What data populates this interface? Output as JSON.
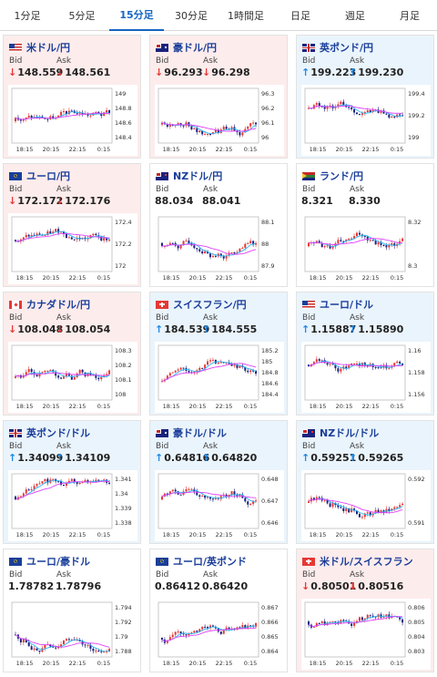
{
  "tabs": [
    "1分足",
    "5分足",
    "15分足",
    "30分足",
    "1時間足",
    "日足",
    "週足",
    "月足"
  ],
  "active_tab": 2,
  "labels": {
    "bid": "Bid",
    "ask": "Ask"
  },
  "x_ticks": [
    "18:15",
    "20:15",
    "22:15",
    "0:15"
  ],
  "colors": {
    "down": "#e53935",
    "up": "#1e88e5",
    "ma": "#e040fb",
    "bull": "#e53935",
    "bear": "#1a237e"
  },
  "cards": [
    {
      "pair": "米ドル/円",
      "flag": "flag-us",
      "bid": "148.559",
      "ask": "148.561",
      "dir": "down",
      "y_ticks": [
        "149",
        "148.8",
        "148.6",
        "148.4"
      ]
    },
    {
      "pair": "豪ドル/円",
      "flag": "flag-au",
      "bid": "96.293",
      "ask": "96.298",
      "dir": "down",
      "y_ticks": [
        "96.3",
        "96.2",
        "96.1",
        "96"
      ]
    },
    {
      "pair": "英ポンド/円",
      "flag": "flag-gb",
      "bid": "199.223",
      "ask": "199.230",
      "dir": "up",
      "y_ticks": [
        "199.4",
        "199.2",
        "199"
      ]
    },
    {
      "pair": "ユーロ/円",
      "flag": "flag-eu",
      "bid": "172.172",
      "ask": "172.176",
      "dir": "down",
      "y_ticks": [
        "172.4",
        "172.2",
        "172"
      ]
    },
    {
      "pair": "NZドル/円",
      "flag": "flag-nz",
      "bid": "88.034",
      "ask": "88.041",
      "dir": "none",
      "y_ticks": [
        "88.1",
        "88",
        "87.9"
      ]
    },
    {
      "pair": "ランド/円",
      "flag": "flag-za",
      "bid": "8.321",
      "ask": "8.330",
      "dir": "none",
      "y_ticks": [
        "8.32",
        "8.3"
      ]
    },
    {
      "pair": "カナダドル/円",
      "flag": "flag-ca",
      "bid": "108.048",
      "ask": "108.054",
      "dir": "down",
      "y_ticks": [
        "108.3",
        "108.2",
        "108.1",
        "108"
      ]
    },
    {
      "pair": "スイスフラン/円",
      "flag": "flag-ch",
      "bid": "184.539",
      "ask": "184.555",
      "dir": "up",
      "y_ticks": [
        "185.2",
        "185",
        "184.8",
        "184.6",
        "184.4"
      ]
    },
    {
      "pair": "ユーロ/ドル",
      "flag": "flag-us",
      "bid": "1.15887",
      "ask": "1.15890",
      "dir": "up",
      "y_ticks": [
        "1.16",
        "1.158",
        "1.156"
      ]
    },
    {
      "pair": "英ポンド/ドル",
      "flag": "flag-gb",
      "bid": "1.34099",
      "ask": "1.34109",
      "dir": "up",
      "y_ticks": [
        "1.341",
        "1.34",
        "1.339",
        "1.338"
      ]
    },
    {
      "pair": "豪ドル/ドル",
      "flag": "flag-au",
      "bid": "0.64816",
      "ask": "0.64820",
      "dir": "up",
      "y_ticks": [
        "0.648",
        "0.647",
        "0.646"
      ]
    },
    {
      "pair": "NZドル/ドル",
      "flag": "flag-nz",
      "bid": "0.59251",
      "ask": "0.59265",
      "dir": "up",
      "y_ticks": [
        "0.592",
        "0.591"
      ]
    },
    {
      "pair": "ユーロ/豪ドル",
      "flag": "flag-eu",
      "bid": "1.78782",
      "ask": "1.78796",
      "dir": "none",
      "y_ticks": [
        "1.794",
        "1.792",
        "1.79",
        "1.788"
      ]
    },
    {
      "pair": "ユーロ/英ポンド",
      "flag": "flag-eu",
      "bid": "0.86412",
      "ask": "0.86420",
      "dir": "none",
      "y_ticks": [
        "0.867",
        "0.866",
        "0.865",
        "0.864"
      ]
    },
    {
      "pair": "米ドル/スイスフラン",
      "flag": "flag-ch",
      "bid": "0.80501",
      "ask": "0.80516",
      "dir": "down",
      "y_ticks": [
        "0.806",
        "0.805",
        "0.804",
        "0.803"
      ]
    }
  ]
}
